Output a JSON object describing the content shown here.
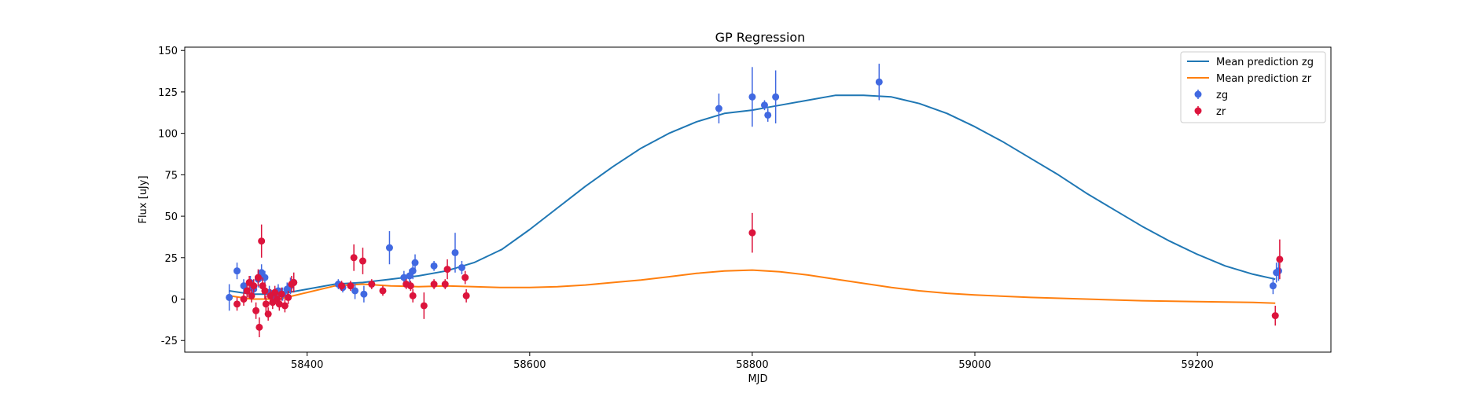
{
  "chart_data": {
    "type": "scatter",
    "title": "GP Regression",
    "xlabel": "MJD",
    "ylabel": "Flux [uJy]",
    "xlim": [
      58290,
      59320
    ],
    "ylim": [
      -32,
      152
    ],
    "xticks": [
      58400,
      58600,
      58800,
      59000,
      59200
    ],
    "yticks": [
      -25,
      0,
      25,
      50,
      75,
      100,
      125,
      150
    ],
    "grid": false,
    "legend_position": "top-right",
    "colors": {
      "mean_zg": "#1f77b4",
      "mean_zr": "#ff7f0e",
      "points_zg": "#4169e1",
      "points_zr": "#dc143c"
    },
    "lines": [
      {
        "name": "Mean prediction zg",
        "x": [
          58330,
          58350,
          58375,
          58400,
          58425,
          58450,
          58475,
          58500,
          58525,
          58550,
          58575,
          58600,
          58625,
          58650,
          58675,
          58700,
          58725,
          58750,
          58775,
          58800,
          58825,
          58850,
          58875,
          58900,
          58925,
          58950,
          58975,
          59000,
          59025,
          59050,
          59075,
          59100,
          59125,
          59150,
          59175,
          59200,
          59225,
          59250,
          59270
        ],
        "y": [
          5,
          3,
          3,
          6,
          9,
          10,
          12,
          14,
          17,
          22,
          30,
          42,
          55,
          68,
          80,
          91,
          100,
          107,
          112,
          114,
          117,
          120,
          123,
          123,
          122,
          118,
          112,
          104,
          95,
          85,
          75,
          64,
          54,
          44,
          35,
          27,
          20,
          15,
          12
        ]
      },
      {
        "name": "Mean prediction zr",
        "x": [
          58330,
          58350,
          58375,
          58400,
          58425,
          58450,
          58475,
          58500,
          58525,
          58550,
          58575,
          58600,
          58625,
          58650,
          58675,
          58700,
          58725,
          58750,
          58775,
          58800,
          58825,
          58850,
          58875,
          58900,
          58925,
          58950,
          58975,
          59000,
          59050,
          59100,
          59150,
          59200,
          59250,
          59270
        ],
        "y": [
          2,
          0,
          0,
          4,
          8,
          9,
          8,
          7.5,
          8,
          7.5,
          7,
          7,
          7.5,
          8.5,
          10,
          11.5,
          13.5,
          15.5,
          17,
          17.5,
          16.5,
          14.5,
          12,
          9.5,
          7,
          5,
          3.5,
          2.5,
          1,
          0,
          -1,
          -1.5,
          -2,
          -2.5
        ]
      }
    ],
    "series": [
      {
        "name": "zg",
        "points": [
          {
            "x": 58330,
            "y": 1,
            "err": 8
          },
          {
            "x": 58337,
            "y": 17,
            "err": 5
          },
          {
            "x": 58343,
            "y": 8,
            "err": 4
          },
          {
            "x": 58346,
            "y": 5,
            "err": 4
          },
          {
            "x": 58349,
            "y": 10,
            "err": 4
          },
          {
            "x": 58352,
            "y": 6,
            "err": 4
          },
          {
            "x": 58356,
            "y": 12,
            "err": 5
          },
          {
            "x": 58359,
            "y": 16,
            "err": 5
          },
          {
            "x": 58362,
            "y": 13,
            "err": 4
          },
          {
            "x": 58366,
            "y": 4,
            "err": 4
          },
          {
            "x": 58370,
            "y": 2,
            "err": 4
          },
          {
            "x": 58374,
            "y": 5,
            "err": 4
          },
          {
            "x": 58378,
            "y": 3,
            "err": 4
          },
          {
            "x": 58382,
            "y": 6,
            "err": 4
          },
          {
            "x": 58385,
            "y": 8,
            "err": 5
          },
          {
            "x": 58388,
            "y": 10,
            "err": 6
          },
          {
            "x": 58428,
            "y": 9,
            "err": 3
          },
          {
            "x": 58432,
            "y": 7,
            "err": 3
          },
          {
            "x": 58443,
            "y": 5,
            "err": 5
          },
          {
            "x": 58451,
            "y": 3,
            "err": 5
          },
          {
            "x": 58474,
            "y": 31,
            "err": 10
          },
          {
            "x": 58487,
            "y": 13,
            "err": 4
          },
          {
            "x": 58492,
            "y": 14,
            "err": 4
          },
          {
            "x": 58495,
            "y": 17,
            "err": 5
          },
          {
            "x": 58497,
            "y": 22,
            "err": 5
          },
          {
            "x": 58514,
            "y": 20,
            "err": 3
          },
          {
            "x": 58533,
            "y": 28,
            "err": 12
          },
          {
            "x": 58539,
            "y": 19,
            "err": 4
          },
          {
            "x": 58770,
            "y": 115,
            "err": 9
          },
          {
            "x": 58800,
            "y": 122,
            "err": 18
          },
          {
            "x": 58811,
            "y": 117,
            "err": 3
          },
          {
            "x": 58814,
            "y": 111,
            "err": 4
          },
          {
            "x": 58821,
            "y": 122,
            "err": 16
          },
          {
            "x": 58914,
            "y": 131,
            "err": 11
          },
          {
            "x": 59268,
            "y": 8,
            "err": 5
          },
          {
            "x": 59271,
            "y": 16,
            "err": 6
          },
          {
            "x": 59273,
            "y": 17,
            "err": 6
          }
        ]
      },
      {
        "name": "zr",
        "points": [
          {
            "x": 58337,
            "y": -3,
            "err": 4
          },
          {
            "x": 58343,
            "y": 0,
            "err": 4
          },
          {
            "x": 58346,
            "y": 5,
            "err": 4
          },
          {
            "x": 58348,
            "y": 10,
            "err": 4
          },
          {
            "x": 58350,
            "y": 2,
            "err": 4
          },
          {
            "x": 58352,
            "y": 8,
            "err": 4
          },
          {
            "x": 58354,
            "y": -7,
            "err": 5
          },
          {
            "x": 58356,
            "y": 13,
            "err": 5
          },
          {
            "x": 58357,
            "y": -17,
            "err": 6
          },
          {
            "x": 58359,
            "y": 35,
            "err": 10
          },
          {
            "x": 58360,
            "y": 8,
            "err": 5
          },
          {
            "x": 58362,
            "y": 5,
            "err": 5
          },
          {
            "x": 58363,
            "y": -3,
            "err": 5
          },
          {
            "x": 58365,
            "y": -9,
            "err": 4
          },
          {
            "x": 58367,
            "y": 2,
            "err": 4
          },
          {
            "x": 58369,
            "y": -2,
            "err": 4
          },
          {
            "x": 58371,
            "y": 4,
            "err": 4
          },
          {
            "x": 58373,
            "y": 0,
            "err": 4
          },
          {
            "x": 58375,
            "y": -3,
            "err": 4
          },
          {
            "x": 58377,
            "y": 3,
            "err": 4
          },
          {
            "x": 58380,
            "y": -4,
            "err": 4
          },
          {
            "x": 58383,
            "y": 1,
            "err": 4
          },
          {
            "x": 58386,
            "y": 9,
            "err": 5
          },
          {
            "x": 58388,
            "y": 10,
            "err": 6
          },
          {
            "x": 58431,
            "y": 8,
            "err": 3
          },
          {
            "x": 58439,
            "y": 8,
            "err": 3
          },
          {
            "x": 58442,
            "y": 25,
            "err": 8
          },
          {
            "x": 58450,
            "y": 23,
            "err": 8
          },
          {
            "x": 58458,
            "y": 9,
            "err": 3
          },
          {
            "x": 58468,
            "y": 5,
            "err": 3
          },
          {
            "x": 58489,
            "y": 9,
            "err": 3
          },
          {
            "x": 58493,
            "y": 8,
            "err": 3
          },
          {
            "x": 58495,
            "y": 2,
            "err": 4
          },
          {
            "x": 58505,
            "y": -4,
            "err": 8
          },
          {
            "x": 58514,
            "y": 9,
            "err": 3
          },
          {
            "x": 58524,
            "y": 9,
            "err": 3
          },
          {
            "x": 58526,
            "y": 18,
            "err": 6
          },
          {
            "x": 58542,
            "y": 13,
            "err": 4
          },
          {
            "x": 58543,
            "y": 2,
            "err": 4
          },
          {
            "x": 58800,
            "y": 40,
            "err": 12
          },
          {
            "x": 59270,
            "y": -10,
            "err": 6
          },
          {
            "x": 59274,
            "y": 24,
            "err": 12
          }
        ]
      }
    ]
  }
}
